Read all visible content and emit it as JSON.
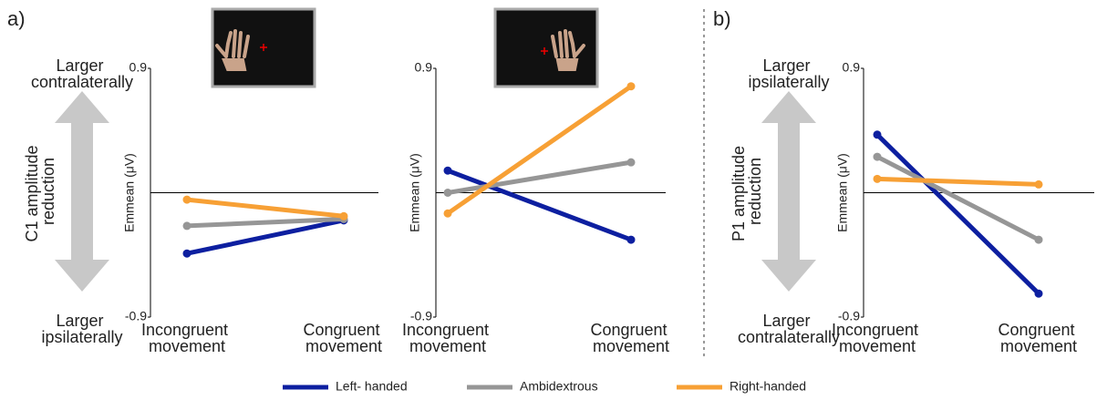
{
  "chart_data": [
    {
      "type": "line",
      "panel": "a)",
      "upper_note": "Larger contralaterally",
      "center_note": "C1 amplitude reduction",
      "lower_note": "Larger ipsilaterally",
      "ylabel": "Emmean (μV)",
      "categories": [
        "Incongruent movement",
        "Congruent movement"
      ],
      "ylim": [
        -0.9,
        0.9
      ],
      "yticks": [
        -0.9,
        0.9
      ],
      "baseline": 0,
      "series": [
        {
          "name": "Left- handed",
          "color": "#0d1fa0",
          "values": [
            -0.44,
            -0.2
          ]
        },
        {
          "name": "Ambidextrous",
          "color": "#969696",
          "values": [
            -0.24,
            -0.19
          ]
        },
        {
          "name": "Right-handed",
          "color": "#f7a035",
          "values": [
            -0.05,
            -0.17
          ]
        }
      ]
    },
    {
      "type": "line",
      "ylabel": "Emmean (μV)",
      "categories": [
        "Incongruent movement",
        "Congruent movement"
      ],
      "ylim": [
        -0.9,
        0.9
      ],
      "yticks": [
        -0.9,
        0.9
      ],
      "baseline": 0,
      "series": [
        {
          "color": "#0d1fa0",
          "values": [
            0.16,
            -0.34
          ]
        },
        {
          "color": "#969696",
          "values": [
            0,
            0.22
          ]
        },
        {
          "color": "#f7a035",
          "values": [
            -0.15,
            0.77
          ]
        }
      ]
    },
    {
      "type": "line",
      "panel": "b)",
      "upper_note": "Larger ipsilaterally",
      "center_note": "P1 amplitude reduction",
      "lower_note": "Larger contralaterally",
      "ylabel": "Emmean (μV)",
      "categories": [
        "Incongruent movement",
        "Congruent movement"
      ],
      "ylim": [
        -0.9,
        0.9
      ],
      "yticks": [
        -0.9,
        0.9
      ],
      "baseline": 0,
      "series": [
        {
          "color": "#0d1fa0",
          "values": [
            0.42,
            -0.73
          ]
        },
        {
          "color": "#969696",
          "values": [
            0.26,
            -0.34
          ]
        },
        {
          "color": "#f7a035",
          "values": [
            0.1,
            0.06
          ]
        }
      ]
    }
  ]
}
